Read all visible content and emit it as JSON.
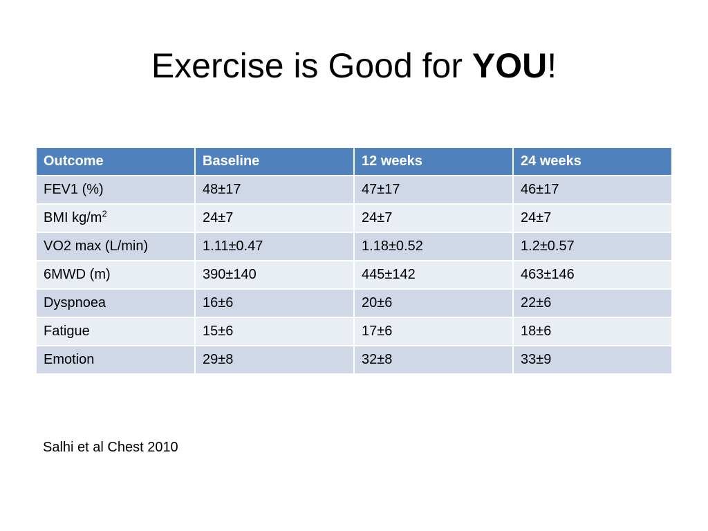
{
  "slide": {
    "title_prefix": "Exercise is Good for ",
    "title_emphasis": "YOU",
    "title_suffix": "!",
    "citation": "Salhi et al Chest 2010"
  },
  "table": {
    "headers": [
      "Outcome",
      "Baseline",
      "12 weeks",
      "24 weeks"
    ],
    "rows": [
      {
        "outcome": "FEV1 (%)",
        "outcome_sup": "",
        "baseline": "48±17",
        "week12": "47±17",
        "week24": "46±17"
      },
      {
        "outcome": "BMI kg/m",
        "outcome_sup": "2",
        "baseline": "24±7",
        "week12": "24±7",
        "week24": "24±7"
      },
      {
        "outcome": "VO2 max (L/min)",
        "outcome_sup": "",
        "baseline": "1.11±0.47",
        "week12": "1.18±0.52",
        "week24": "1.2±0.57"
      },
      {
        "outcome": "6MWD (m)",
        "outcome_sup": "",
        "baseline": "390±140",
        "week12": "445±142",
        "week24": "463±146"
      },
      {
        "outcome": "Dyspnoea",
        "outcome_sup": "",
        "baseline": "16±6",
        "week12": "20±6",
        "week24": "22±6"
      },
      {
        "outcome": "Fatigue",
        "outcome_sup": "",
        "baseline": "15±6",
        "week12": "17±6",
        "week24": "18±6"
      },
      {
        "outcome": "Emotion",
        "outcome_sup": "",
        "baseline": "29±8",
        "week12": "32±8",
        "week24": "33±9"
      }
    ]
  },
  "colors": {
    "header_fill": "#4f81bd",
    "row_band_dark": "#d0d8e8",
    "row_band_light": "#e9edf4"
  }
}
